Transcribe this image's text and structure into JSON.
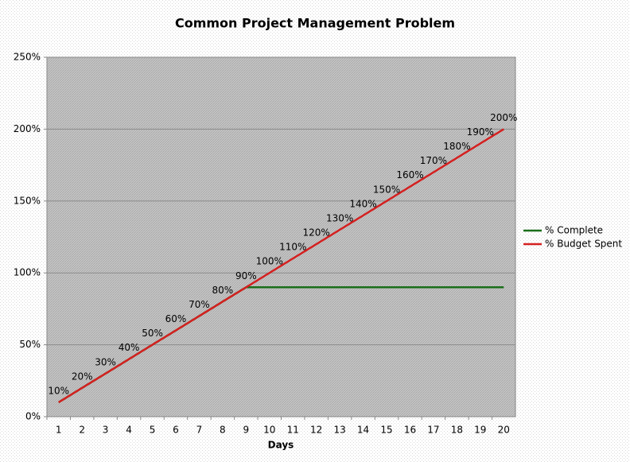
{
  "chart_data": {
    "type": "line",
    "title": "Common Project Management Problem",
    "x_label": "Days",
    "categories": [
      "1",
      "2",
      "3",
      "4",
      "5",
      "6",
      "7",
      "8",
      "9",
      "10",
      "11",
      "12",
      "13",
      "14",
      "15",
      "16",
      "17",
      "18",
      "19",
      "20"
    ],
    "series": [
      {
        "name": "% Complete",
        "color": "#1a6e1a",
        "values": [
          10,
          20,
          30,
          40,
          50,
          60,
          70,
          80,
          90,
          90,
          90,
          90,
          90,
          90,
          90,
          90,
          90,
          90,
          90,
          90
        ]
      },
      {
        "name": "% Budget Spent",
        "color": "#d42020",
        "values": [
          10,
          20,
          30,
          40,
          50,
          60,
          70,
          80,
          90,
          100,
          110,
          120,
          130,
          140,
          150,
          160,
          170,
          180,
          190,
          200
        ],
        "value_labels": [
          "10%",
          "20%",
          "30%",
          "40%",
          "50%",
          "60%",
          "70%",
          "80%",
          "90%",
          "100%",
          "110%",
          "120%",
          "130%",
          "140%",
          "150%",
          "160%",
          "170%",
          "180%",
          "190%",
          "200%"
        ]
      }
    ],
    "ylim": [
      0,
      250
    ],
    "yticks": [
      {
        "value": 0,
        "label": "0%"
      },
      {
        "value": 50,
        "label": "50%"
      },
      {
        "value": 100,
        "label": "100%"
      },
      {
        "value": 150,
        "label": "150%"
      },
      {
        "value": 200,
        "label": "200%"
      },
      {
        "value": 250,
        "label": "250%"
      }
    ],
    "grid": true,
    "legend": "right"
  }
}
